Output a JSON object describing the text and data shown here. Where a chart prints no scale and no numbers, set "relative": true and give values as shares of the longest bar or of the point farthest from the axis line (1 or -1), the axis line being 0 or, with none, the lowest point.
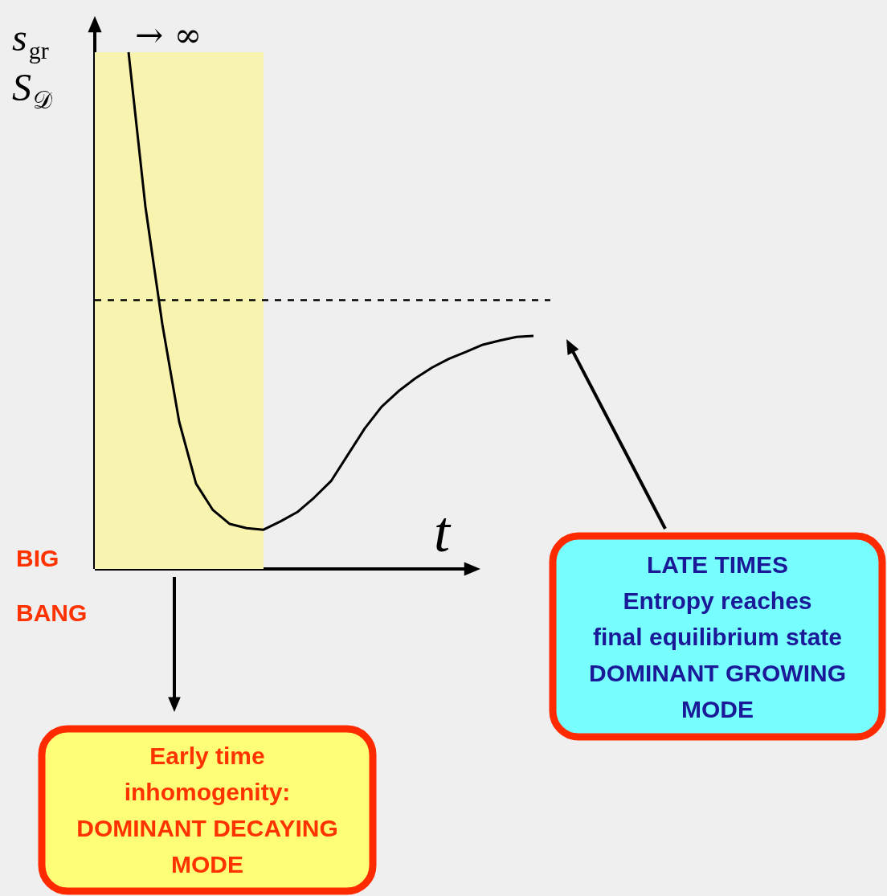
{
  "chart_data": {
    "type": "line",
    "relative": true,
    "xlabel": "t",
    "ylabel": "s$_{gr}$\nS$_{𝒟}$",
    "categories": [
      null,
      null,
      null,
      null,
      null,
      null,
      null,
      null,
      null,
      null,
      null,
      null,
      null,
      null,
      null,
      null,
      null,
      null,
      null,
      null,
      null,
      null,
      null,
      null,
      null,
      null,
      null,
      null
    ],
    "series": [
      {
        "color": "#000000",
        "values": [
          null,
          null,
          1.0,
          0.701,
          0.474,
          0.285,
          0.165,
          0.114,
          0.087,
          0.079,
          0.076,
          0.092,
          0.11,
          0.138,
          0.17,
          0.221,
          0.272,
          0.314,
          0.344,
          0.369,
          0.39,
          0.407,
          0.42,
          0.434,
          0.442,
          0.449,
          0.451,
          null
        ]
      }
    ],
    "marker": "none",
    "line_style": "solid",
    "ref_lines": [
      {
        "axis": "y",
        "value": 0.52,
        "line_style": "dashed",
        "color": "#000000"
      }
    ],
    "annotations": [
      "→ ∞",
      "BIG\nBANG",
      "Early time\ninhomogenity:\nDOMINANT DECAYING\nMODE",
      "LATE TIMES\nEntropy reaches\nfinal equilibrium state\nDOMINANT GROWING\nMODE"
    ]
  }
}
